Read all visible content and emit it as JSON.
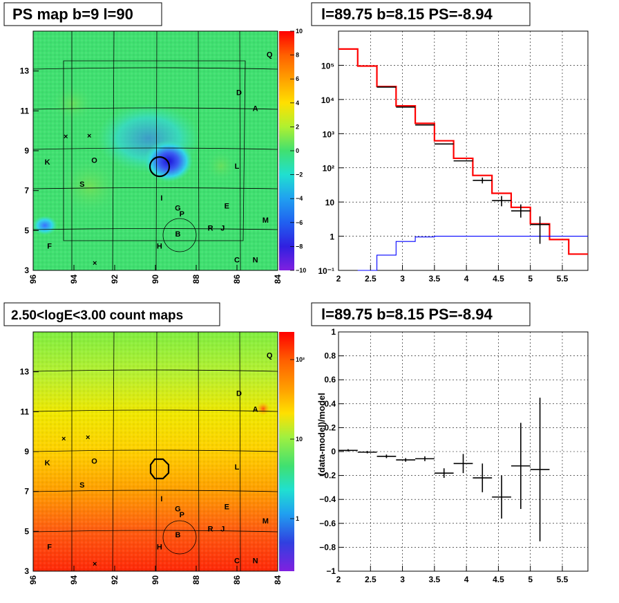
{
  "panels": {
    "top_left_title": "PS map b=9 l=90",
    "top_right_title": "l=89.75 b=8.15 PS=-8.94",
    "bottom_left_title": "2.50<logE<3.00 count maps",
    "bottom_right_title": "l=89.75 b=8.15 PS=-8.94"
  },
  "chart_data": [
    {
      "type": "heatmap",
      "title": "PS map b=9 l=90",
      "x_ticks": [
        "96",
        "94",
        "92",
        "90",
        "88",
        "86",
        "84"
      ],
      "y_ticks": [
        "3",
        "5",
        "7",
        "9",
        "11",
        "13"
      ],
      "xlim": [
        96,
        84
      ],
      "ylim": [
        3,
        15
      ],
      "colorbar_ticks": [
        "10",
        "8",
        "6",
        "4",
        "2",
        "0",
        "−2",
        "−4",
        "−6",
        "−8",
        "−10"
      ],
      "colorbar_range": [
        -10,
        10
      ],
      "circle_center": {
        "l": 89.75,
        "b": 8.15
      },
      "markers": [
        {
          "label": "Q",
          "l": 84.4,
          "b": 13.7
        },
        {
          "label": "D",
          "l": 85.9,
          "b": 11.8
        },
        {
          "label": "A",
          "l": 85.1,
          "b": 11.0
        },
        {
          "label": "K",
          "l": 95.3,
          "b": 8.3
        },
        {
          "label": "O",
          "l": 93.0,
          "b": 8.4
        },
        {
          "label": "L",
          "l": 86.0,
          "b": 8.1
        },
        {
          "label": "S",
          "l": 93.6,
          "b": 7.2
        },
        {
          "label": "I",
          "l": 89.7,
          "b": 6.5
        },
        {
          "label": "G",
          "l": 88.9,
          "b": 6.0
        },
        {
          "label": "P",
          "l": 88.7,
          "b": 5.7
        },
        {
          "label": "E",
          "l": 86.5,
          "b": 6.1
        },
        {
          "label": "M",
          "l": 84.6,
          "b": 5.4
        },
        {
          "label": "R",
          "l": 87.3,
          "b": 5.0
        },
        {
          "label": "J",
          "l": 86.7,
          "b": 5.0
        },
        {
          "label": "B",
          "l": 88.9,
          "b": 4.7
        },
        {
          "label": "F",
          "l": 95.2,
          "b": 4.1
        },
        {
          "label": "H",
          "l": 89.8,
          "b": 4.1
        },
        {
          "label": "C",
          "l": 86.0,
          "b": 3.4
        },
        {
          "label": "N",
          "l": 85.1,
          "b": 3.4
        }
      ]
    },
    {
      "type": "line",
      "title": "l=89.75 b=8.15 PS=-8.94",
      "yscale": "log",
      "xlim": [
        2,
        5.9
      ],
      "ylim": [
        0.1,
        1000000
      ],
      "x_ticks": [
        "2",
        "2.5",
        "3",
        "3.5",
        "4",
        "4.5",
        "5",
        "5.5"
      ],
      "y_ticks": [
        "10⁻¹",
        "1",
        "10",
        "10²",
        "10³",
        "10⁴",
        "10⁵"
      ],
      "bin_edges": [
        2.0,
        2.3,
        2.6,
        2.9,
        3.2,
        3.5,
        3.8,
        4.1,
        4.4,
        4.7,
        5.0,
        5.3,
        5.6,
        5.9
      ],
      "series": [
        {
          "color": "#ff0000",
          "values": [
            300000,
            95000,
            24000,
            6500,
            2000,
            620,
            190,
            60,
            18,
            7,
            2.3,
            0.8,
            0.3
          ]
        },
        {
          "color": "#000000",
          "values": [
            null,
            null,
            23000,
            6000,
            1800,
            500,
            160,
            43,
            11,
            5.5,
            2.2,
            null,
            null
          ],
          "errors_low": [
            null,
            null,
            0,
            0,
            0,
            0,
            0,
            35,
            7.5,
            3.5,
            0.6,
            null,
            null
          ],
          "errors_high": [
            null,
            null,
            0,
            0,
            0,
            0,
            0,
            52,
            15,
            8.5,
            3.8,
            null,
            null
          ]
        },
        {
          "color": "#0000ff",
          "values": [
            null,
            0.02,
            0.28,
            0.7,
            0.95,
            1.0,
            1.0,
            1.0,
            1.0,
            1.0,
            1.0,
            1.0,
            1.0
          ]
        }
      ],
      "grid": true
    },
    {
      "type": "heatmap",
      "title": "2.50<logE<3.00 count maps",
      "x_ticks": [
        "96",
        "94",
        "92",
        "90",
        "88",
        "86",
        "84"
      ],
      "y_ticks": [
        "3",
        "5",
        "7",
        "9",
        "11",
        "13"
      ],
      "colorbar_ticks": [
        "10²",
        "10",
        "1"
      ],
      "colorbar_scale": "log"
    },
    {
      "type": "scatter",
      "title": "l=89.75 b=8.15 PS=-8.94",
      "ylabel": "(data-model)/model",
      "xlim": [
        2,
        5.9
      ],
      "ylim": [
        -1,
        1
      ],
      "x_ticks": [
        "2",
        "2.5",
        "3",
        "3.5",
        "4",
        "4.5",
        "5",
        "5.5"
      ],
      "y_ticks": [
        "−1",
        "−0.8",
        "−0.6",
        "−0.4",
        "−0.2",
        "0",
        "0.2",
        "0.4",
        "0.6",
        "0.8",
        "1"
      ],
      "points": [
        {
          "x": 2.15,
          "y": 0.01,
          "xerr": 0.15,
          "yerr": 0.01
        },
        {
          "x": 2.45,
          "y": -0.005,
          "xerr": 0.15,
          "yerr": 0.01
        },
        {
          "x": 2.75,
          "y": -0.04,
          "xerr": 0.15,
          "yerr": 0.015
        },
        {
          "x": 3.05,
          "y": -0.07,
          "xerr": 0.15,
          "yerr": 0.015
        },
        {
          "x": 3.35,
          "y": -0.06,
          "xerr": 0.15,
          "yerr": 0.02
        },
        {
          "x": 3.65,
          "y": -0.18,
          "xerr": 0.15,
          "yerr": 0.04
        },
        {
          "x": 3.95,
          "y": -0.1,
          "xerr": 0.15,
          "yerr": 0.08
        },
        {
          "x": 4.25,
          "y": -0.22,
          "xerr": 0.15,
          "yerr": 0.12
        },
        {
          "x": 4.55,
          "y": -0.38,
          "xerr": 0.15,
          "yerr": 0.18
        },
        {
          "x": 4.85,
          "y": -0.12,
          "xerr": 0.15,
          "yerr": 0.36
        },
        {
          "x": 5.15,
          "y": -0.15,
          "xerr": 0.15,
          "yerr": 0.6
        }
      ],
      "grid": true
    }
  ]
}
